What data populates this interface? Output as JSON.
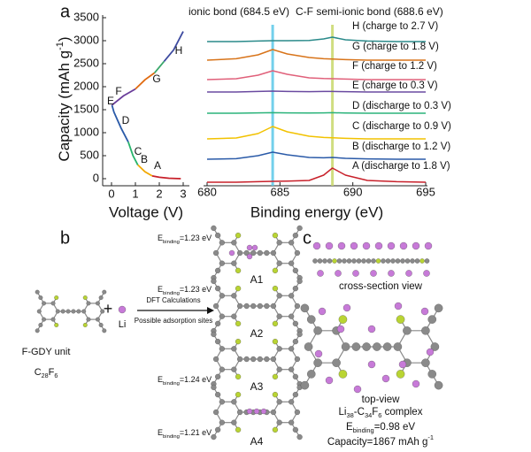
{
  "panel_labels": [
    "a",
    "b",
    "c"
  ],
  "chart_data": [
    {
      "type": "line",
      "xlabel": "Voltage (V)",
      "ylabel": [
        {
          "text": "Capacity (mAh g"
        },
        {
          "text": "-1",
          "sup": true
        },
        {
          "text": ")"
        }
      ],
      "xlim": [
        0,
        3
      ],
      "xticks": [
        0,
        1,
        2,
        3
      ],
      "ylim": [
        0,
        3500
      ],
      "yticks": [
        0,
        500,
        1000,
        1500,
        2000,
        2500,
        3000,
        3500
      ],
      "series": [
        {
          "color": "#c8202a",
          "x": [
            2.9,
            2.4,
            2.0,
            1.7
          ],
          "values": [
            0,
            10,
            30,
            60
          ]
        },
        {
          "color": "#f2a900",
          "x": [
            1.7,
            1.4,
            1.1
          ],
          "values": [
            60,
            150,
            300
          ]
        },
        {
          "color": "#27b36b",
          "x": [
            1.1,
            0.9,
            0.7
          ],
          "values": [
            300,
            500,
            800
          ]
        },
        {
          "color": "#2a5aa8",
          "x": [
            0.7,
            0.4,
            0.1,
            0.02
          ],
          "values": [
            800,
            1100,
            1450,
            1600
          ]
        },
        {
          "color": "#6a3d9a",
          "x": [
            0.02,
            0.5,
            1.0
          ],
          "values": [
            1600,
            1800,
            1950
          ]
        },
        {
          "color": "#e06a10",
          "x": [
            1.0,
            1.4,
            1.8
          ],
          "values": [
            1950,
            2150,
            2300
          ]
        },
        {
          "color": "#3aa86b",
          "x": [
            1.8,
            2.2
          ],
          "values": [
            2300,
            2550
          ]
        },
        {
          "color": "#3d4aa0",
          "x": [
            2.2,
            2.6,
            3.0
          ],
          "values": [
            2550,
            2800,
            3200
          ]
        }
      ],
      "point_labels": [
        "A",
        "B",
        "C",
        "D",
        "E",
        "F",
        "G",
        "H"
      ]
    },
    {
      "type": "spectra",
      "xlabel": "Binding energy (eV)",
      "xlim": [
        680,
        695
      ],
      "xticks": [
        680,
        685,
        690,
        695
      ],
      "reference_lines": [
        {
          "value": 684.5,
          "label": "ionic bond (684.5 eV)",
          "color": "#5bc8e8"
        },
        {
          "value": 688.6,
          "label": "C-F semi-ionic bond (688.6 eV)",
          "color": "#c8d86a"
        }
      ],
      "x": [
        680,
        682,
        683.5,
        684.5,
        685.5,
        687,
        688,
        688.6,
        689.5,
        691,
        693,
        695
      ],
      "series": [
        {
          "name": "A (discharge to 1.8 V)",
          "color": "#c8202a",
          "values": [
            0,
            0,
            0.3,
            0.5,
            0.6,
            1,
            4,
            8,
            4,
            1,
            0.3,
            0
          ]
        },
        {
          "name": "B (discharge to 1.2 V)",
          "color": "#2a5aa8",
          "values": [
            0,
            0.3,
            2,
            4,
            2.5,
            1,
            0.8,
            1,
            0.5,
            0.2,
            0,
            0
          ]
        },
        {
          "name": "C (discharge to 0.9 V)",
          "color": "#f2c200",
          "values": [
            0,
            0.5,
            3,
            7,
            4,
            1.5,
            0.8,
            0.6,
            0.3,
            0,
            0,
            0
          ]
        },
        {
          "name": "D (discharge to 0.3 V)",
          "color": "#2ab37a",
          "values": [
            0,
            0,
            0.2,
            0.3,
            0.2,
            0.1,
            0.2,
            0.3,
            0.1,
            0,
            0,
            0
          ]
        },
        {
          "name": "E (charge to 0.3 V)",
          "color": "#6a4aa0",
          "values": [
            0,
            0,
            0.3,
            0.5,
            0.3,
            0.2,
            0.3,
            0.3,
            0.2,
            0,
            0,
            0
          ]
        },
        {
          "name": "F (charge to 1.2 V)",
          "color": "#e0607a",
          "values": [
            0,
            0.5,
            2.5,
            5,
            3,
            1,
            0.6,
            0.5,
            0.3,
            0,
            0,
            0
          ]
        },
        {
          "name": "G (charge to 1.8 V)",
          "color": "#d8741a",
          "values": [
            0,
            0.8,
            3,
            6,
            3.5,
            1.5,
            0.8,
            0.6,
            0.3,
            0,
            0,
            0
          ]
        },
        {
          "name": "H (charge to 2.7 V)",
          "color": "#2a8a8a",
          "values": [
            0,
            0,
            0.3,
            0.5,
            0.5,
            0.6,
            1.5,
            2.5,
            1,
            0.3,
            0,
            0
          ]
        }
      ]
    }
  ],
  "panel_b": {
    "unit_name": "F-GDY unit",
    "unit_formula": [
      {
        "text": "C"
      },
      {
        "text": "28",
        "sub": true
      },
      {
        "text": "F"
      },
      {
        "text": "6",
        "sub": true
      }
    ],
    "plus": "+",
    "li": "Li",
    "arrow_top": "DFT Calculations",
    "arrow_bottom": "Possible adsorption sites",
    "sites": [
      {
        "name": "A1",
        "energy": [
          {
            "text": "E"
          },
          {
            "text": "binding",
            "sub": true
          },
          {
            "text": "=1.23 eV"
          }
        ]
      },
      {
        "name": "A2",
        "energy": [
          {
            "text": "E"
          },
          {
            "text": "binding",
            "sub": true
          },
          {
            "text": "=1.23 eV"
          }
        ]
      },
      {
        "name": "A3",
        "energy": [
          {
            "text": "E"
          },
          {
            "text": "binding",
            "sub": true
          },
          {
            "text": "=1.24 eV"
          }
        ]
      },
      {
        "name": "A4",
        "energy": [
          {
            "text": "E"
          },
          {
            "text": "binding",
            "sub": true
          },
          {
            "text": "=1.21 eV"
          }
        ]
      }
    ]
  },
  "panel_c": {
    "cross_section": "cross-section view",
    "top_view": "top-view",
    "complex": [
      {
        "text": "Li"
      },
      {
        "text": "38",
        "sub": true
      },
      {
        "text": "-C"
      },
      {
        "text": "34",
        "sub": true
      },
      {
        "text": "F"
      },
      {
        "text": "6",
        "sub": true
      },
      {
        "text": " complex"
      }
    ],
    "energy": [
      {
        "text": "E"
      },
      {
        "text": "binding",
        "sub": true
      },
      {
        "text": "=0.98 eV"
      }
    ],
    "capacity": [
      {
        "text": "Capacity=1867 mAh g"
      },
      {
        "text": "-1",
        "sup": true
      }
    ]
  }
}
